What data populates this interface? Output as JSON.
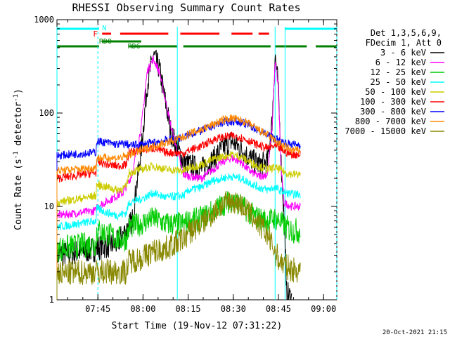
{
  "chart_data": {
    "type": "line",
    "title": "RHESSI Observing Summary Count Rates",
    "xlabel": "Start Time (19-Nov-12 07:31:22)",
    "ylabel": "Count Rate (s",
    "ylabel_sup1": "-1",
    "ylabel_mid": " detector",
    "ylabel_sup2": "-1",
    "ylabel_end": ")",
    "yscale": "log",
    "ylim": [
      1,
      1000
    ],
    "xlim_minutes": [
      0,
      93
    ],
    "x_tick_labels": [
      "07:45",
      "08:00",
      "08:15",
      "08:30",
      "08:45",
      "09:00"
    ],
    "x_tick_minutes": [
      13.6,
      28.6,
      43.6,
      58.6,
      73.6,
      88.6
    ],
    "y_tick_labels": [
      "1",
      "10",
      "100",
      "1000"
    ],
    "y_tick_values": [
      1,
      10,
      100,
      1000
    ],
    "legend_header": [
      "Det 1,3,5,6,9,",
      "FDecim 1, Att 0"
    ],
    "timestamp": "20-Oct-2021 21:15",
    "flag_labels": {
      "night": "N",
      "flare": "F",
      "rd0": "RD0",
      "rd6": "RD6"
    },
    "series": [
      {
        "name": "3 - 6 keV",
        "color": "#000000",
        "x": [
          0,
          13,
          13.2,
          20,
          25,
          28,
          30,
          32,
          34,
          38,
          42,
          44,
          48,
          52,
          55,
          58,
          61,
          64,
          67,
          70,
          71.5,
          72.5,
          73.5,
          74.5,
          75.8,
          76.2,
          78
        ],
        "values": [
          3.0,
          3.5,
          3.6,
          4.0,
          7,
          40,
          200,
          420,
          300,
          60,
          30,
          28,
          25,
          32,
          42,
          50,
          42,
          33,
          28,
          30,
          80,
          420,
          200,
          30,
          5,
          1.2,
          1.0
        ]
      },
      {
        "name": "6 - 12 keV",
        "color": "#ff00ff",
        "x": [
          0,
          13,
          13.2,
          16,
          20,
          22,
          25,
          28,
          30,
          32,
          34,
          38,
          42,
          44,
          48,
          52,
          55,
          58,
          61,
          64,
          67,
          70,
          71.5,
          72.5,
          73.5,
          74.5,
          75.5,
          78,
          81
        ],
        "values": [
          8.0,
          9.0,
          10,
          11,
          13,
          14,
          22,
          70,
          280,
          380,
          280,
          70,
          22,
          21,
          20,
          25,
          30,
          33,
          30,
          24,
          21,
          22,
          70,
          350,
          200,
          25,
          11,
          10,
          10
        ]
      },
      {
        "name": "12 - 25 keV",
        "color": "#00cc00",
        "x": [
          0,
          13,
          13.2,
          17,
          20,
          23,
          24,
          28,
          32,
          36,
          42,
          44,
          48,
          52,
          55,
          58,
          61,
          64,
          67,
          70,
          72,
          74,
          76,
          78,
          81
        ],
        "values": [
          3.5,
          4.0,
          5.5,
          5.0,
          4.5,
          4.5,
          6.0,
          6.5,
          7.5,
          6.5,
          6.5,
          7.0,
          7.5,
          9.0,
          10.5,
          11.5,
          10.5,
          8.5,
          7.5,
          7.0,
          7.5,
          7.0,
          6.0,
          5.5,
          5.5
        ]
      },
      {
        "name": "25 - 50 keV",
        "color": "#00ffff",
        "x": [
          0,
          13,
          13.2,
          17,
          20,
          23,
          24,
          28,
          32,
          36,
          42,
          44,
          48,
          52,
          55,
          58,
          61,
          64,
          67,
          70,
          72,
          74,
          76,
          78,
          81
        ],
        "values": [
          6.0,
          7.0,
          9.5,
          8.5,
          8.0,
          8.5,
          11,
          12,
          14,
          12.5,
          13,
          15,
          16,
          19,
          20,
          21,
          20,
          18,
          16,
          15,
          16,
          15,
          14,
          13.5,
          13.5
        ]
      },
      {
        "name": "50 - 100 keV",
        "color": "#cccc00",
        "x": [
          0,
          13,
          13.2,
          17,
          20,
          23,
          24,
          28,
          32,
          36,
          42,
          44,
          48,
          52,
          55,
          58,
          61,
          64,
          67,
          70,
          72,
          74,
          76,
          78,
          81
        ],
        "values": [
          11,
          13,
          17,
          16,
          15,
          16,
          23,
          25,
          27,
          25,
          24,
          26,
          28,
          32,
          34,
          36,
          34,
          30,
          27,
          25,
          26,
          25,
          23,
          22,
          22
        ]
      },
      {
        "name": "100 - 300 keV",
        "color": "#ff0000",
        "x": [
          0,
          13,
          13.2,
          17,
          20,
          23,
          24,
          28,
          32,
          36,
          42,
          44,
          48,
          52,
          55,
          58,
          61,
          64,
          67,
          70,
          72,
          74,
          76,
          78,
          81
        ],
        "values": [
          20,
          23,
          30,
          28,
          27,
          28,
          38,
          40,
          42,
          38,
          37,
          40,
          44,
          52,
          55,
          57,
          55,
          50,
          45,
          42,
          44,
          42,
          38,
          36,
          36
        ]
      },
      {
        "name": "300 - 800 keV",
        "color": "#0000ff",
        "x": [
          0,
          13,
          13.2,
          17,
          20,
          23,
          24,
          28,
          32,
          36,
          42,
          44,
          48,
          52,
          55,
          58,
          61,
          64,
          67,
          70,
          72,
          74,
          76,
          78,
          81
        ],
        "values": [
          35,
          38,
          50,
          48,
          46,
          47,
          45,
          46,
          48,
          51,
          55,
          59,
          65,
          73,
          79,
          82,
          80,
          73,
          65,
          58,
          54,
          50,
          48,
          46,
          46
        ]
      },
      {
        "name": "800 - 7000 keV",
        "color": "#ff8800",
        "x": [
          0,
          13,
          13.2,
          17,
          20,
          23,
          24,
          28,
          32,
          36,
          42,
          44,
          48,
          52,
          55,
          58,
          61,
          64,
          67,
          70,
          72,
          74,
          76,
          78,
          81
        ],
        "values": [
          24,
          26,
          33,
          33,
          33,
          34,
          36,
          40,
          44,
          48,
          55,
          60,
          66,
          76,
          84,
          88,
          84,
          76,
          66,
          58,
          52,
          47,
          43,
          40,
          40
        ]
      },
      {
        "name": "7000 - 15000 keV",
        "color": "#888800",
        "x": [
          0,
          13,
          13.2,
          17,
          20,
          23,
          24,
          28,
          32,
          36,
          42,
          44,
          48,
          52,
          55,
          58,
          61,
          64,
          67,
          70,
          72,
          74,
          76,
          78,
          81
        ],
        "values": [
          1.9,
          2.0,
          2.0,
          2.0,
          2.0,
          2.0,
          2.6,
          2.8,
          3.3,
          3.5,
          4.5,
          5.3,
          6.5,
          8.5,
          10.5,
          11.5,
          10.5,
          8.5,
          6.5,
          5.0,
          3.5,
          2.6,
          2.3,
          2.1,
          2.1
        ]
      }
    ],
    "vertical_markers_minutes": [
      0,
      13.6,
      40,
      72.5,
      75.8,
      93.5
    ]
  }
}
